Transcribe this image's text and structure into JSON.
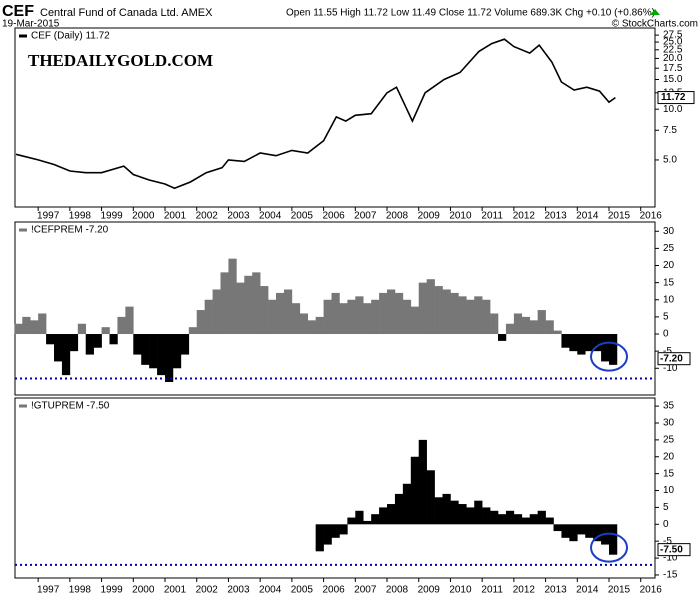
{
  "chart_data": [
    {
      "type": "line",
      "title": "CEF",
      "subtitle": "Central Fund of Canada Ltd. AMEX",
      "date": "19-Mar-2015",
      "quote": "Open 11.55 High 11.72 Low 11.49 Close 11.72 Volume 689.3K Chg +0.10 (+0.86%)",
      "source": "© StockCharts.com",
      "watermark": "THEDAILYGOLD.COM",
      "legend": "CEF (Daily) 11.72",
      "log": true,
      "color": "#000000",
      "last_value": 11.72,
      "x": [
        1996.3,
        1997.0,
        1997.5,
        1998.0,
        1998.5,
        1999.0,
        1999.7,
        2000.0,
        2000.5,
        2001.0,
        2001.3,
        2001.8,
        2002.3,
        2002.8,
        2003.0,
        2003.5,
        2004.0,
        2004.5,
        2005.0,
        2005.5,
        2006.0,
        2006.4,
        2006.7,
        2007.0,
        2007.5,
        2008.0,
        2008.3,
        2008.8,
        2009.2,
        2009.8,
        2010.3,
        2010.9,
        2011.3,
        2011.7,
        2012.0,
        2012.5,
        2012.8,
        2013.2,
        2013.5,
        2013.9,
        2014.3,
        2014.7,
        2015.0,
        2015.2
      ],
      "values": [
        5.4,
        5.0,
        4.7,
        4.3,
        4.2,
        4.2,
        4.6,
        4.1,
        3.8,
        3.6,
        3.4,
        3.7,
        4.2,
        4.5,
        5.0,
        4.9,
        5.5,
        5.3,
        5.7,
        5.5,
        6.5,
        9.0,
        8.5,
        9.2,
        9.4,
        12.5,
        13.5,
        8.5,
        12.5,
        15.0,
        16.5,
        22.0,
        24.5,
        26.0,
        23.5,
        21.5,
        24.0,
        19.0,
        14.5,
        13.0,
        13.5,
        12.8,
        11.0,
        11.72
      ],
      "xlim": [
        1996.27,
        2016.45
      ],
      "xticks": [
        1997,
        1998,
        1999,
        2000,
        2001,
        2002,
        2003,
        2004,
        2005,
        2006,
        2007,
        2008,
        2009,
        2010,
        2011,
        2012,
        2013,
        2014,
        2015,
        2016
      ],
      "ylim": [
        2.63,
        30.3
      ],
      "yticks": [
        {
          "value": 5,
          "label": "5.0"
        },
        {
          "value": 7.5,
          "label": "7.5"
        },
        {
          "value": 10,
          "label": "10.0"
        },
        {
          "value": 12.5,
          "label": "12.5"
        },
        {
          "value": 15,
          "label": "15.0"
        },
        {
          "value": 17.5,
          "label": "17.5"
        },
        {
          "value": 20,
          "label": "20.0"
        },
        {
          "value": 22.5,
          "label": "22.5"
        },
        {
          "value": 25,
          "label": "25.0"
        },
        {
          "value": 27.5,
          "label": "27.5"
        }
      ]
    },
    {
      "type": "bar",
      "legend": "!CEFPREM -7.20",
      "positive_color": "#777777",
      "negative_color": "#000000",
      "bar_width": 0.25,
      "ref_line": -13,
      "last_value": {
        "value": -7.2,
        "label": "-7.20"
      },
      "x": [
        1996.25,
        1996.5,
        1996.75,
        1997.0,
        1997.25,
        1997.5,
        1997.75,
        1998.0,
        1998.25,
        1998.5,
        1998.75,
        1999.0,
        1999.25,
        1999.5,
        1999.75,
        2000.0,
        2000.25,
        2000.5,
        2000.75,
        2001.0,
        2001.25,
        2001.5,
        2001.75,
        2002.0,
        2002.25,
        2002.5,
        2002.75,
        2003.0,
        2003.25,
        2003.5,
        2003.75,
        2004.0,
        2004.25,
        2004.5,
        2004.75,
        2005.0,
        2005.25,
        2005.5,
        2005.75,
        2006.0,
        2006.25,
        2006.5,
        2006.75,
        2007.0,
        2007.25,
        2007.5,
        2007.75,
        2008.0,
        2008.25,
        2008.5,
        2008.75,
        2009.0,
        2009.25,
        2009.5,
        2009.75,
        2010.0,
        2010.25,
        2010.5,
        2010.75,
        2011.0,
        2011.25,
        2011.5,
        2011.75,
        2012.0,
        2012.25,
        2012.5,
        2012.75,
        2013.0,
        2013.25,
        2013.5,
        2013.75,
        2014.0,
        2014.25,
        2014.5,
        2014.75,
        2015.0
      ],
      "values": [
        3,
        5,
        4,
        6,
        -3,
        -8,
        -12,
        -5,
        3,
        -6,
        -4,
        2,
        -3,
        5,
        8,
        -6,
        -9,
        -10,
        -12,
        -14,
        -10,
        -6,
        2,
        7,
        10,
        13,
        18,
        22,
        15,
        17,
        18,
        14,
        10,
        12,
        13,
        9,
        6,
        4,
        5,
        10,
        12,
        9,
        10,
        11,
        9,
        10,
        12,
        13,
        12,
        10,
        8,
        15,
        16,
        14,
        13,
        12,
        11,
        10,
        11,
        10,
        6,
        -2,
        3,
        6,
        5,
        4,
        7,
        4,
        1,
        -4,
        -5,
        -6,
        -5,
        -5,
        -8,
        -9
      ],
      "ylim": [
        -17.8,
        32.7
      ],
      "yticks": [
        -10,
        -5,
        0,
        5,
        10,
        15,
        20,
        25,
        30
      ]
    },
    {
      "type": "bar",
      "legend": "!GTUPREM -7.50",
      "positive_color": "#000000",
      "negative_color": "#000000",
      "bar_width": 0.25,
      "ref_line": -12,
      "last_value": {
        "value": -7.5,
        "label": "-7.50"
      },
      "x": [
        2005.75,
        2006.0,
        2006.25,
        2006.5,
        2006.75,
        2007.0,
        2007.25,
        2007.5,
        2007.75,
        2008.0,
        2008.25,
        2008.5,
        2008.75,
        2009.0,
        2009.25,
        2009.5,
        2009.75,
        2010.0,
        2010.25,
        2010.5,
        2010.75,
        2011.0,
        2011.25,
        2011.5,
        2011.75,
        2012.0,
        2012.25,
        2012.5,
        2012.75,
        2013.0,
        2013.25,
        2013.5,
        2013.75,
        2014.0,
        2014.25,
        2014.5,
        2014.75,
        2015.0
      ],
      "values": [
        -8,
        -6,
        -4,
        -3,
        2,
        4,
        1,
        3,
        5,
        6,
        9,
        12,
        20,
        25,
        16,
        8,
        9,
        7,
        6,
        5,
        7,
        5,
        4,
        3,
        4,
        3,
        2,
        3,
        4,
        2,
        -2,
        -4,
        -5,
        -3,
        -4,
        -5,
        -6,
        -9
      ],
      "ylim": [
        -15.9,
        37.4
      ],
      "yticks": [
        -15,
        -10,
        -5,
        0,
        5,
        10,
        15,
        20,
        25,
        30,
        35
      ]
    }
  ]
}
